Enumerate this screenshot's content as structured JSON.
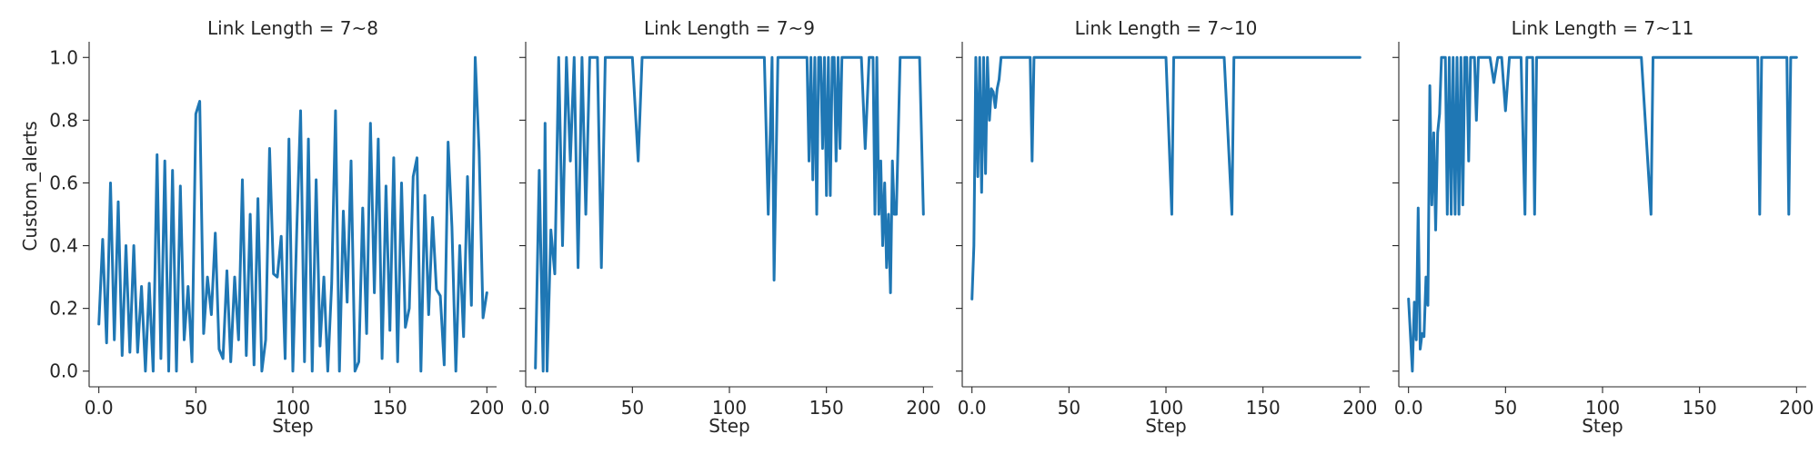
{
  "figure": {
    "ylabel": "Custom_alerts",
    "xlabel": "Step"
  },
  "chart_data": [
    {
      "type": "line",
      "title": "Link Length = 7~8",
      "xlabel": "Step",
      "ylabel": "Custom_alerts",
      "xlim": [
        -5,
        205
      ],
      "ylim": [
        -0.05,
        1.05
      ],
      "xticks": [
        0,
        50,
        100,
        150,
        200
      ],
      "yticks": [
        0.0,
        0.2,
        0.4,
        0.6,
        0.8,
        1.0
      ],
      "grid": false,
      "color": "#1f77b4",
      "x": [
        0,
        2,
        4,
        6,
        8,
        10,
        12,
        14,
        16,
        18,
        20,
        22,
        24,
        26,
        28,
        30,
        32,
        34,
        36,
        38,
        40,
        42,
        44,
        46,
        48,
        50,
        52,
        54,
        56,
        58,
        60,
        62,
        64,
        66,
        68,
        70,
        72,
        74,
        76,
        78,
        80,
        82,
        84,
        86,
        88,
        90,
        92,
        94,
        96,
        98,
        100,
        102,
        104,
        106,
        108,
        110,
        112,
        114,
        116,
        118,
        120,
        122,
        124,
        126,
        128,
        130,
        132,
        134,
        136,
        138,
        140,
        142,
        144,
        146,
        148,
        150,
        152,
        154,
        156,
        158,
        160,
        162,
        164,
        166,
        168,
        170,
        172,
        174,
        176,
        178,
        180,
        182,
        184,
        186,
        188,
        190,
        192,
        194,
        196,
        198,
        200
      ],
      "values": [
        0.15,
        0.42,
        0.09,
        0.6,
        0.1,
        0.54,
        0.05,
        0.4,
        0.06,
        0.4,
        0.06,
        0.27,
        0.0,
        0.28,
        0.0,
        0.69,
        0.04,
        0.67,
        0.0,
        0.64,
        0.0,
        0.59,
        0.1,
        0.27,
        0.03,
        0.82,
        0.86,
        0.12,
        0.3,
        0.18,
        0.44,
        0.07,
        0.04,
        0.32,
        0.03,
        0.3,
        0.1,
        0.61,
        0.05,
        0.5,
        0.02,
        0.55,
        0.0,
        0.1,
        0.71,
        0.31,
        0.3,
        0.43,
        0.04,
        0.74,
        0.0,
        0.45,
        0.83,
        0.03,
        0.74,
        0.0,
        0.61,
        0.08,
        0.3,
        0.0,
        0.28,
        0.83,
        0.0,
        0.51,
        0.22,
        0.67,
        0.0,
        0.03,
        0.52,
        0.12,
        0.79,
        0.25,
        0.74,
        0.04,
        0.59,
        0.13,
        0.68,
        0.03,
        0.6,
        0.14,
        0.2,
        0.62,
        0.68,
        0.0,
        0.56,
        0.18,
        0.49,
        0.26,
        0.24,
        0.02,
        0.73,
        0.46,
        0.0,
        0.4,
        0.11,
        0.62,
        0.21,
        1.0,
        0.7,
        0.17,
        0.25
      ]
    },
    {
      "type": "line",
      "title": "Link Length = 7~9",
      "xlabel": "Step",
      "xlim": [
        -5,
        205
      ],
      "ylim": [
        -0.05,
        1.05
      ],
      "xticks": [
        0,
        50,
        100,
        150,
        200
      ],
      "grid": false,
      "color": "#1f77b4",
      "x": [
        0,
        2,
        4,
        5,
        6,
        8,
        10,
        12,
        14,
        16,
        18,
        20,
        22,
        24,
        26,
        28,
        30,
        32,
        34,
        36,
        40,
        50,
        53,
        55,
        60,
        70,
        80,
        90,
        100,
        110,
        118,
        120,
        122,
        123,
        125,
        130,
        138,
        140,
        141,
        142,
        143,
        144,
        145,
        146,
        147,
        148,
        149,
        150,
        151,
        152,
        153,
        154,
        155,
        156,
        157,
        158,
        160,
        162,
        164,
        166,
        168,
        170,
        172,
        174,
        175,
        176,
        177,
        178,
        179,
        180,
        181,
        182,
        183,
        184,
        185,
        186,
        188,
        190,
        192,
        194,
        196,
        198,
        200
      ],
      "values": [
        0.01,
        0.64,
        0.0,
        0.79,
        0.0,
        0.45,
        0.31,
        1.0,
        0.4,
        1.0,
        0.67,
        1.0,
        0.33,
        1.0,
        0.5,
        1.0,
        1.0,
        1.0,
        0.33,
        1.0,
        1.0,
        1.0,
        0.67,
        1.0,
        1.0,
        1.0,
        1.0,
        1.0,
        1.0,
        1.0,
        1.0,
        0.5,
        1.0,
        0.29,
        1.0,
        1.0,
        1.0,
        1.0,
        0.67,
        1.0,
        0.61,
        1.0,
        0.5,
        1.0,
        1.0,
        0.71,
        1.0,
        0.56,
        1.0,
        0.56,
        1.0,
        1.0,
        0.67,
        1.0,
        0.71,
        1.0,
        1.0,
        1.0,
        1.0,
        1.0,
        1.0,
        0.71,
        1.0,
        1.0,
        0.5,
        1.0,
        0.5,
        0.67,
        0.4,
        0.6,
        0.33,
        0.5,
        0.25,
        0.67,
        0.5,
        0.5,
        1.0,
        1.0,
        1.0,
        1.0,
        1.0,
        1.0,
        0.5
      ]
    },
    {
      "type": "line",
      "title": "Link Length = 7~10",
      "xlabel": "Step",
      "xlim": [
        -5,
        205
      ],
      "ylim": [
        -0.05,
        1.05
      ],
      "xticks": [
        0,
        50,
        100,
        150,
        200
      ],
      "grid": false,
      "color": "#1f77b4",
      "x": [
        0,
        1,
        2,
        3,
        4,
        5,
        6,
        7,
        8,
        9,
        10,
        11,
        12,
        13,
        14,
        15,
        16,
        17,
        18,
        20,
        25,
        30,
        31,
        32,
        33,
        34,
        40,
        50,
        60,
        70,
        80,
        90,
        100,
        103,
        104,
        106,
        120,
        130,
        134,
        135,
        137,
        150,
        160,
        170,
        180,
        190,
        200
      ],
      "values": [
        0.23,
        0.4,
        1.0,
        0.62,
        1.0,
        0.57,
        1.0,
        0.63,
        1.0,
        0.8,
        0.9,
        0.89,
        0.84,
        0.9,
        0.93,
        1.0,
        1.0,
        1.0,
        1.0,
        1.0,
        1.0,
        1.0,
        0.67,
        1.0,
        1.0,
        1.0,
        1.0,
        1.0,
        1.0,
        1.0,
        1.0,
        1.0,
        1.0,
        0.5,
        1.0,
        1.0,
        1.0,
        1.0,
        0.5,
        1.0,
        1.0,
        1.0,
        1.0,
        1.0,
        1.0,
        1.0,
        1.0
      ]
    },
    {
      "type": "line",
      "title": "Link Length = 7~11",
      "xlabel": "Step",
      "xlim": [
        -5,
        205
      ],
      "ylim": [
        -0.05,
        1.05
      ],
      "xticks": [
        0,
        50,
        100,
        150,
        200
      ],
      "grid": false,
      "color": "#1f77b4",
      "x": [
        0,
        2,
        3,
        4,
        5,
        6,
        7,
        8,
        9,
        10,
        11,
        12,
        13,
        14,
        15,
        16,
        17,
        18,
        19,
        20,
        21,
        22,
        23,
        24,
        25,
        26,
        27,
        28,
        29,
        30,
        31,
        32,
        33,
        34,
        35,
        36,
        37,
        38,
        40,
        42,
        44,
        46,
        48,
        50,
        52,
        55,
        58,
        60,
        61,
        62,
        64,
        65,
        66,
        70,
        80,
        90,
        100,
        110,
        120,
        125,
        126,
        127,
        140,
        160,
        180,
        181,
        182,
        190,
        195,
        196,
        197,
        200
      ],
      "values": [
        0.23,
        0.0,
        0.22,
        0.1,
        0.52,
        0.07,
        0.12,
        0.11,
        0.3,
        0.21,
        0.91,
        0.53,
        0.76,
        0.45,
        0.76,
        0.82,
        1.0,
        1.0,
        1.0,
        0.5,
        1.0,
        0.5,
        1.0,
        0.5,
        1.0,
        0.5,
        1.0,
        0.53,
        1.0,
        1.0,
        0.67,
        1.0,
        1.0,
        1.0,
        0.8,
        1.0,
        1.0,
        1.0,
        1.0,
        1.0,
        0.92,
        1.0,
        1.0,
        0.83,
        1.0,
        1.0,
        1.0,
        0.5,
        1.0,
        1.0,
        1.0,
        0.5,
        1.0,
        1.0,
        1.0,
        1.0,
        1.0,
        1.0,
        1.0,
        0.5,
        1.0,
        1.0,
        1.0,
        1.0,
        1.0,
        0.5,
        1.0,
        1.0,
        1.0,
        0.5,
        1.0,
        1.0
      ]
    }
  ]
}
